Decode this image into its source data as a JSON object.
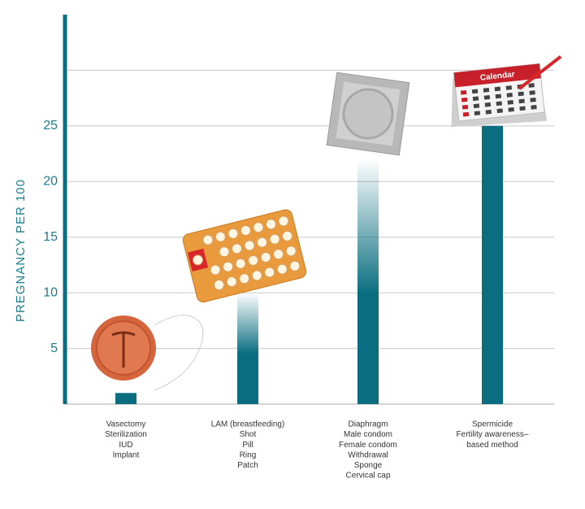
{
  "chart_data": {
    "type": "bar",
    "y_label": "PREGNANCY PER 100",
    "categories": [
      [
        "Vasectomy",
        "Sterilization",
        "IUD",
        "Implant"
      ],
      [
        "LAM (breastfeeding)",
        "Shot",
        "Pill",
        "Ring",
        "Patch"
      ],
      [
        "Diaphragm",
        "Male condom",
        "Female condom",
        "Withdrawal",
        "Sponge",
        "Cervical cap"
      ],
      [
        "Spermicide",
        "Fertility awareness–",
        "based method"
      ]
    ],
    "values": [
      1,
      10,
      22,
      25
    ],
    "faded_bars": [
      false,
      true,
      true,
      false
    ],
    "color": "#0a6e80",
    "ylim": [
      0,
      35
    ],
    "yticks": [
      5,
      10,
      15,
      20,
      25
    ],
    "gridlines": [
      5,
      10,
      15,
      20,
      25,
      30
    ],
    "grid": true,
    "calendar_title": "Calendar"
  }
}
